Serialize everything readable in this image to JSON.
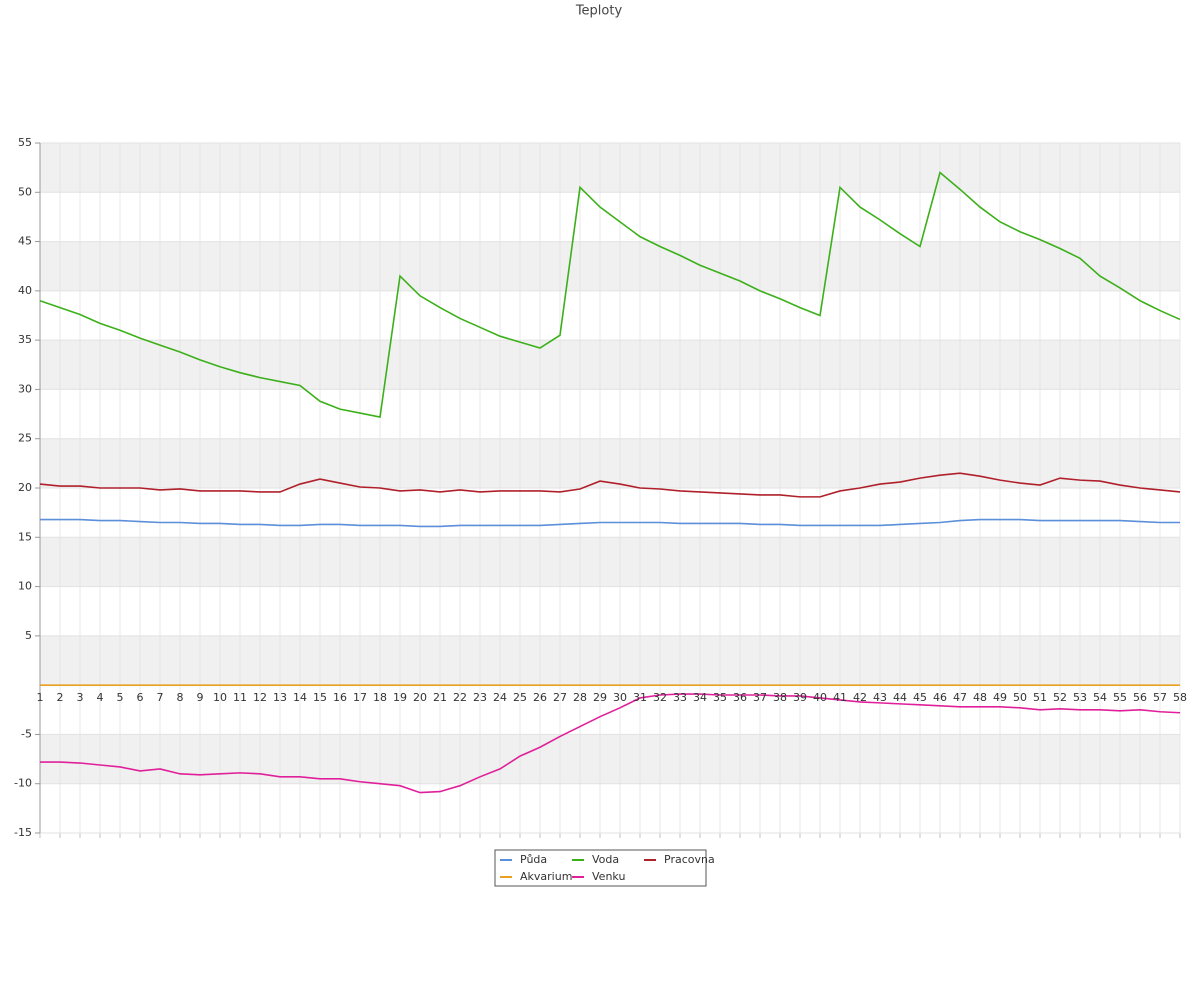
{
  "chart_data": {
    "type": "line",
    "title": "Teploty",
    "categories": [
      1,
      2,
      3,
      4,
      5,
      6,
      7,
      8,
      9,
      10,
      11,
      12,
      13,
      14,
      15,
      16,
      17,
      18,
      19,
      20,
      21,
      22,
      23,
      24,
      25,
      26,
      27,
      28,
      29,
      30,
      31,
      32,
      33,
      34,
      35,
      36,
      37,
      38,
      39,
      40,
      41,
      42,
      43,
      44,
      45,
      46,
      47,
      48,
      49,
      50,
      51,
      52,
      53,
      54,
      55,
      56,
      57,
      58
    ],
    "series": [
      {
        "name": "Půda",
        "color": "#5b8fd9",
        "values": [
          16.8,
          16.8,
          16.8,
          16.7,
          16.7,
          16.6,
          16.5,
          16.5,
          16.4,
          16.4,
          16.3,
          16.3,
          16.2,
          16.2,
          16.3,
          16.3,
          16.2,
          16.2,
          16.2,
          16.1,
          16.1,
          16.2,
          16.2,
          16.2,
          16.2,
          16.2,
          16.3,
          16.4,
          16.5,
          16.5,
          16.5,
          16.5,
          16.4,
          16.4,
          16.4,
          16.4,
          16.3,
          16.3,
          16.2,
          16.2,
          16.2,
          16.2,
          16.2,
          16.3,
          16.4,
          16.5,
          16.7,
          16.8,
          16.8,
          16.8,
          16.7,
          16.7,
          16.7,
          16.7,
          16.7,
          16.6,
          16.5,
          16.5
        ]
      },
      {
        "name": "Voda",
        "color": "#3cb01a",
        "values": [
          39.0,
          38.3,
          37.6,
          36.7,
          36.0,
          35.2,
          34.5,
          33.8,
          33.0,
          32.3,
          31.7,
          31.2,
          30.8,
          30.4,
          28.8,
          28.0,
          27.6,
          27.2,
          41.5,
          39.5,
          38.3,
          37.2,
          36.3,
          35.4,
          34.8,
          34.2,
          35.5,
          50.5,
          48.5,
          47.0,
          45.5,
          44.5,
          43.6,
          42.6,
          41.8,
          41.0,
          40.0,
          39.2,
          38.3,
          37.5,
          50.5,
          48.5,
          47.2,
          45.8,
          44.5,
          52.0,
          50.3,
          48.5,
          47.0,
          46.0,
          45.2,
          44.3,
          43.3,
          41.5,
          40.3,
          39.0,
          38.0,
          37.1
        ]
      },
      {
        "name": "Pracovna",
        "color": "#b0202a",
        "values": [
          20.4,
          20.2,
          20.2,
          20.0,
          20.0,
          20.0,
          19.8,
          19.9,
          19.7,
          19.7,
          19.7,
          19.6,
          19.6,
          20.4,
          20.9,
          20.5,
          20.1,
          20.0,
          19.7,
          19.8,
          19.6,
          19.8,
          19.6,
          19.7,
          19.7,
          19.7,
          19.6,
          19.9,
          20.7,
          20.4,
          20.0,
          19.9,
          19.7,
          19.6,
          19.5,
          19.4,
          19.3,
          19.3,
          19.1,
          19.1,
          19.7,
          20.0,
          20.4,
          20.6,
          21.0,
          21.3,
          21.5,
          21.2,
          20.8,
          20.5,
          20.3,
          21.0,
          20.8,
          20.7,
          20.3,
          20.0,
          19.8,
          19.6
        ]
      },
      {
        "name": "Akvarium",
        "color": "#e8a020",
        "values": [
          0,
          0,
          0,
          0,
          0,
          0,
          0,
          0,
          0,
          0,
          0,
          0,
          0,
          0,
          0,
          0,
          0,
          0,
          0,
          0,
          0,
          0,
          0,
          0,
          0,
          0,
          0,
          0,
          0,
          0,
          0,
          0,
          0,
          0,
          0,
          0,
          0,
          0,
          0,
          0,
          0,
          0,
          0,
          0,
          0,
          0,
          0,
          0,
          0,
          0,
          0,
          0,
          0,
          0,
          0,
          0,
          0,
          0
        ]
      },
      {
        "name": "Venku",
        "color": "#e0209a",
        "values": [
          -7.8,
          -7.8,
          -7.9,
          -8.1,
          -8.3,
          -8.7,
          -8.5,
          -9.0,
          -9.1,
          -9.0,
          -8.9,
          -9.0,
          -9.3,
          -9.3,
          -9.5,
          -9.5,
          -9.8,
          -10.0,
          -10.2,
          -10.9,
          -10.8,
          -10.2,
          -9.3,
          -8.5,
          -7.2,
          -6.3,
          -5.2,
          -4.2,
          -3.2,
          -2.3,
          -1.3,
          -1.0,
          -0.9,
          -0.9,
          -1.0,
          -1.0,
          -1.0,
          -1.1,
          -1.1,
          -1.3,
          -1.5,
          -1.7,
          -1.8,
          -1.9,
          -2.0,
          -2.1,
          -2.2,
          -2.2,
          -2.2,
          -2.3,
          -2.5,
          -2.4,
          -2.5,
          -2.5,
          -2.6,
          -2.5,
          -2.7,
          -2.8
        ]
      }
    ],
    "ylim": [
      -15,
      55
    ],
    "yticks": [
      55,
      50,
      45,
      40,
      35,
      30,
      25,
      20,
      15,
      10,
      5,
      -5,
      -10,
      -15
    ],
    "grid": true
  }
}
